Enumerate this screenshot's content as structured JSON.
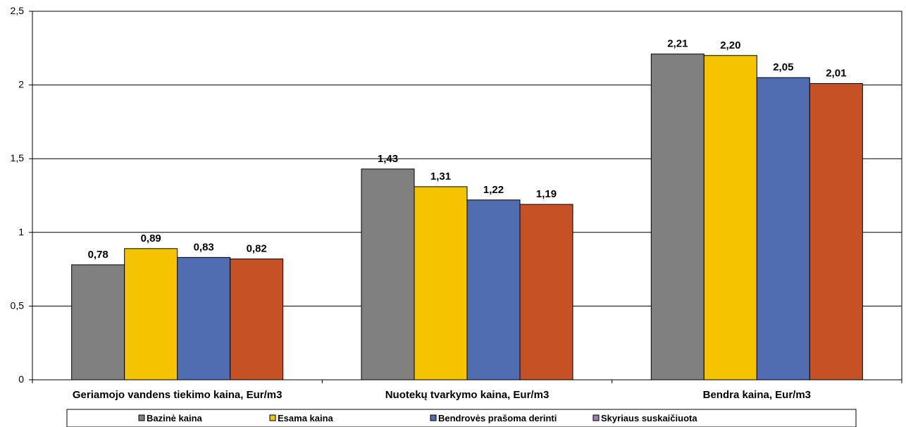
{
  "chart_data": {
    "type": "bar",
    "categories": [
      "Geriamojo vandens tiekimo kaina, Eur/m3",
      "Nuotekų tvarkymo kaina, Eur/m3",
      "Bendra kaina, Eur/m3"
    ],
    "series": [
      {
        "name": "Bazinė kaina",
        "color": "#808080",
        "values": [
          0.78,
          1.43,
          2.21
        ],
        "labels": [
          "0,78",
          "1,43",
          "2,21"
        ]
      },
      {
        "name": "Esama kaina",
        "color": "#F5C400",
        "values": [
          0.89,
          1.31,
          2.2
        ],
        "labels": [
          "0,89",
          "1,31",
          "2,20"
        ]
      },
      {
        "name": "Bendrovės prašoma derinti",
        "color": "#4F6DB0",
        "values": [
          0.83,
          1.22,
          2.05
        ],
        "labels": [
          "0,83",
          "1,22",
          "2,05"
        ]
      },
      {
        "name": "Skyriaus suskaičiuota",
        "color": "#9D7BB8",
        "values": [
          0.82,
          1.19,
          2.01
        ],
        "labels": [
          "0,82",
          "1,19",
          "2,01"
        ]
      }
    ],
    "bar_colors_rendered": [
      "#808080",
      "#F5C400",
      "#4F6DB0",
      "#C55125"
    ],
    "ylim": [
      0,
      2.5
    ],
    "yticks": [
      0,
      0.5,
      1,
      1.5,
      2,
      2.5
    ],
    "ytick_labels": [
      "0",
      "0,5",
      "1",
      "1,5",
      "2",
      "2,5"
    ],
    "grid": true,
    "legend_position": "bottom",
    "title": "",
    "xlabel": "",
    "ylabel": ""
  }
}
